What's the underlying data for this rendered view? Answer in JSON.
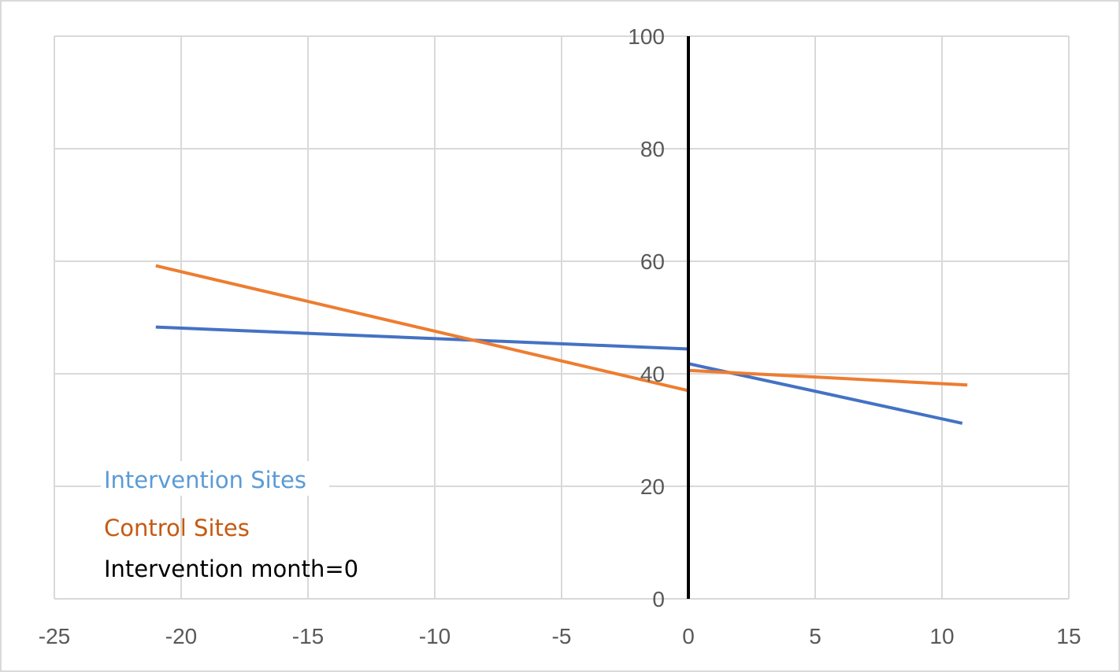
{
  "chart_data": {
    "type": "line",
    "title": "",
    "xlabel": "",
    "ylabel": "",
    "xlim": [
      -25,
      15
    ],
    "ylim": [
      0,
      100
    ],
    "x_ticks": [
      "-25",
      "-20",
      "-15",
      "-10",
      "-5",
      "0",
      "5",
      "10",
      "15"
    ],
    "y_ticks": [
      "0",
      "20",
      "40",
      "60",
      "80",
      "100"
    ],
    "grid": true,
    "series": [
      {
        "name": "Intervention Sites",
        "color": "#4472c4",
        "label_color": "#5b9bd5",
        "segments": [
          [
            {
              "x": -21,
              "y": 48.3
            },
            {
              "x": 0,
              "y": 44.4
            }
          ],
          [
            {
              "x": 0,
              "y": 41.8
            },
            {
              "x": 10.8,
              "y": 31.2
            }
          ]
        ]
      },
      {
        "name": "Control Sites",
        "color": "#ed7d31",
        "label_color": "#c55a11",
        "segments": [
          [
            {
              "x": -21,
              "y": 59.2
            },
            {
              "x": 0,
              "y": 37.0
            }
          ],
          [
            {
              "x": 0,
              "y": 40.6
            },
            {
              "x": 11,
              "y": 38.0
            }
          ]
        ]
      }
    ],
    "reference_line": {
      "name": "Intervention month=0",
      "x": 0,
      "color": "#000000",
      "label_color": "#000000"
    },
    "legend_placement": "bottom-left"
  }
}
